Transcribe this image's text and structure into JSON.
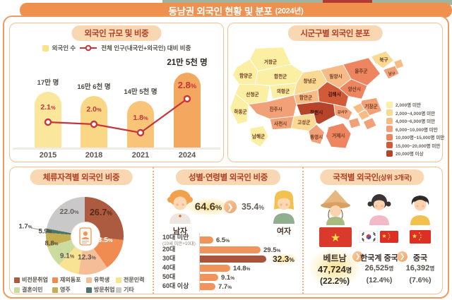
{
  "units": {
    "percent": "%",
    "myeong": "명"
  },
  "page": {
    "title": "동남권 외국인 현황 및 분포",
    "year": "(2024년)"
  },
  "panels": {
    "scale": {
      "title": "외국인 규모 및 비중",
      "legend_bar": "외국인 수",
      "legend_line": "전체 인구(내국인+외국인) 대비 비중"
    },
    "map": {
      "title": "시군구별 외국인 분포"
    },
    "visa": {
      "title": "체류자격별 외국인 비중"
    },
    "gender_age": {
      "title": "성별·연령별 외국인 비중"
    },
    "nationality": {
      "title": "국적별 외국인",
      "title_sub": "(상위 3개국)"
    }
  },
  "chart_data": [
    {
      "id": "foreigner_scale",
      "type": "bar",
      "title": "외국인 규모 및 비중",
      "categories": [
        "2015",
        "2018",
        "2021",
        "2024"
      ],
      "series": [
        {
          "name": "외국인 수",
          "type": "bar",
          "values": [
            170000,
            166000,
            145000,
            215000
          ],
          "value_labels": [
            "17만 명",
            "16만 6천 명",
            "14만 5천 명",
            "21만 5천 명"
          ]
        },
        {
          "name": "전체 인구(내국인+외국인) 대비 비중",
          "type": "line",
          "values": [
            2.1,
            2.0,
            1.8,
            2.8
          ],
          "value_labels": [
            "2.1",
            "2.0",
            "1.8",
            "2.8"
          ]
        }
      ],
      "bar_colors": [
        "#fbe79b",
        "#fad784",
        "#f8c478",
        "#f3a75f"
      ],
      "line_color": "#c4353c"
    },
    {
      "id": "district_map",
      "type": "heatmap",
      "title": "시군구별 외국인 분포",
      "legend": [
        {
          "label": "2,000명 미만",
          "color": "#fbefa3"
        },
        {
          "label": "2,000~4,000명 미만",
          "color": "#fad993"
        },
        {
          "label": "4,000~6,000명 미만",
          "color": "#f7bc85"
        },
        {
          "label": "6,000~10,000명 미만",
          "color": "#f2a077"
        },
        {
          "label": "10,000명~15,000명 미만",
          "color": "#ec8560"
        },
        {
          "label": "15,000~20,000명 미만",
          "color": "#d15b38"
        },
        {
          "label": "20,000명 이상",
          "color": "#b8432b"
        }
      ],
      "regions": [
        {
          "name": "거창군",
          "level": 1
        },
        {
          "name": "함양군",
          "level": 1
        },
        {
          "name": "합천군",
          "level": 1
        },
        {
          "name": "산청군",
          "level": 1
        },
        {
          "name": "의령군",
          "level": 1
        },
        {
          "name": "하동군",
          "level": 1
        },
        {
          "name": "남해군",
          "level": 1
        },
        {
          "name": "창녕군",
          "level": 2
        },
        {
          "name": "밀양시",
          "level": 3
        },
        {
          "name": "울주군",
          "level": 5
        },
        {
          "name": "북구",
          "level": 2
        },
        {
          "name": "동구",
          "level": 3
        },
        {
          "name": "남구",
          "level": 4
        },
        {
          "name": "양산시",
          "level": 5
        },
        {
          "name": "기장군",
          "level": 4
        },
        {
          "name": "함안군",
          "level": 3
        },
        {
          "name": "김해시",
          "level": 6
        },
        {
          "name": "창원시",
          "level": 7
        },
        {
          "name": "진주시",
          "level": 4
        },
        {
          "name": "사천시",
          "level": 4
        },
        {
          "name": "고성군",
          "level": 2
        },
        {
          "name": "통영시",
          "level": 4
        },
        {
          "name": "거제시",
          "level": 5
        },
        {
          "name": "강서구",
          "level": 4
        },
        {
          "name": "금정구",
          "level": 3
        },
        {
          "name": "동래구",
          "level": 3
        },
        {
          "name": "해운대구",
          "level": 4
        },
        {
          "name": "사상구",
          "level": 4
        }
      ]
    },
    {
      "id": "visa_status",
      "type": "pie",
      "title": "체류자격별 외국인 비중",
      "labels": [
        "비전문취업",
        "재외동포",
        "유학생",
        "전문인력",
        "결혼이민",
        "영주",
        "방문취업",
        "기타"
      ],
      "values": [
        26.7,
        13.5,
        12.3,
        9.1,
        8.8,
        5.9,
        1.7,
        22.0
      ],
      "value_labels": [
        "26.7",
        "13.5",
        "12.3",
        "9.1",
        "8.8",
        "5.9",
        "1.7",
        "22.0"
      ],
      "colors": [
        "#ac5b40",
        "#f08b52",
        "#f6be96",
        "#f7e391",
        "#ccdc9f",
        "#c5ad52",
        "#4a7568",
        "#c9c9c9"
      ]
    },
    {
      "id": "gender_age",
      "type": "bar",
      "title": "성별·연령별 외국인 비중",
      "gender": {
        "male_label": "남자",
        "male_value": "64.6",
        "female_label": "여자",
        "female_value": "35.4"
      },
      "categories": [
        "10대 미만",
        "20대",
        "30대",
        "40대",
        "50대",
        "60대 이상"
      ],
      "category_note": "(10세 미만+10대)",
      "values": [
        6.5,
        29.5,
        32.3,
        14.8,
        9.1,
        7.7
      ],
      "value_labels": [
        "6.5",
        "29.5",
        "32.3",
        "14.8",
        "9.1",
        "7.7"
      ],
      "highlight_index": 2,
      "bar_color": "#f0945c",
      "highlight_color": "#a8553b"
    },
    {
      "id": "nationality_top3",
      "type": "table",
      "title": "국적별 외국인(상위 3개국)",
      "rows": [
        {
          "country": "베트남",
          "count": "47,724",
          "share": "(22.2%)"
        },
        {
          "country": "한국계 중국",
          "count": "26,525",
          "share": "(12.4%)"
        },
        {
          "country": "중국",
          "count": "16,392",
          "share": "(7.6%)"
        }
      ]
    }
  ]
}
